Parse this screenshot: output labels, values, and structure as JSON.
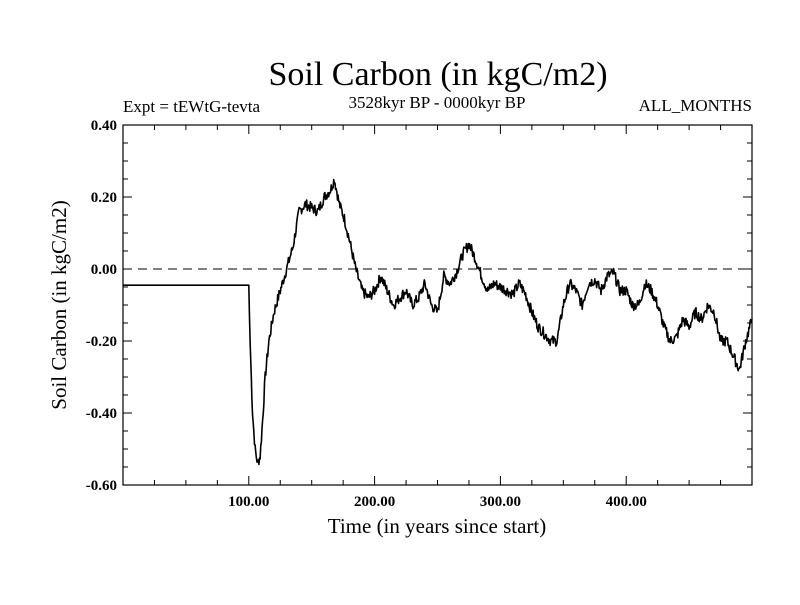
{
  "chart_data": {
    "type": "line",
    "title": "Soil Carbon (in kgC/m2)",
    "experiment_label": "Expt = tEWtG-tevta",
    "period_label": "3528kyr BP - 0000kyr BP",
    "months_label": "ALL_MONTHS",
    "xlabel": "Time (in years since start)",
    "ylabel": "Soil Carbon (in kgC/m2)",
    "xlim": [
      0,
      500
    ],
    "ylim": [
      -0.6,
      0.4
    ],
    "x_ticks": [
      {
        "value": 100,
        "label": "100.00"
      },
      {
        "value": 200,
        "label": "200.00"
      },
      {
        "value": 300,
        "label": "300.00"
      },
      {
        "value": 400,
        "label": "400.00"
      }
    ],
    "y_ticks": [
      {
        "value": 0.4,
        "label": "0.40"
      },
      {
        "value": 0.2,
        "label": "0.20"
      },
      {
        "value": 0.0,
        "label": "0.00"
      },
      {
        "value": -0.2,
        "label": "-0.20"
      },
      {
        "value": -0.4,
        "label": "-0.40"
      },
      {
        "value": -0.6,
        "label": "-0.60"
      }
    ],
    "reference_line": {
      "y": 0.0,
      "style": "dashed"
    },
    "grid": false,
    "series": [
      {
        "name": "soil carbon",
        "x": [
          0,
          100,
          101,
          103,
          105,
          107,
          109,
          111,
          113,
          116,
          120,
          125,
          130,
          135,
          140,
          145,
          150,
          155,
          160,
          165,
          168,
          172,
          176,
          180,
          185,
          190,
          195,
          200,
          205,
          210,
          215,
          220,
          225,
          230,
          235,
          240,
          245,
          250,
          255,
          260,
          265,
          270,
          275,
          280,
          285,
          290,
          295,
          300,
          305,
          310,
          315,
          320,
          325,
          330,
          335,
          340,
          345,
          350,
          355,
          360,
          365,
          370,
          375,
          380,
          385,
          390,
          395,
          400,
          405,
          410,
          415,
          420,
          425,
          430,
          435,
          440,
          445,
          450,
          455,
          460,
          465,
          470,
          475,
          480,
          485,
          490,
          495,
          500
        ],
        "y": [
          -0.045,
          -0.045,
          -0.2,
          -0.4,
          -0.5,
          -0.54,
          -0.52,
          -0.42,
          -0.3,
          -0.2,
          -0.12,
          -0.06,
          0.0,
          0.06,
          0.16,
          0.18,
          0.17,
          0.16,
          0.2,
          0.22,
          0.25,
          0.18,
          0.14,
          0.08,
          0.0,
          -0.06,
          -0.08,
          -0.06,
          -0.02,
          -0.06,
          -0.1,
          -0.08,
          -0.06,
          -0.1,
          -0.08,
          -0.04,
          -0.1,
          -0.12,
          -0.02,
          -0.04,
          -0.01,
          0.04,
          0.07,
          0.03,
          -0.02,
          -0.06,
          -0.04,
          -0.05,
          -0.06,
          -0.07,
          -0.04,
          -0.07,
          -0.12,
          -0.16,
          -0.18,
          -0.2,
          -0.2,
          -0.1,
          -0.04,
          -0.06,
          -0.1,
          -0.04,
          -0.03,
          -0.06,
          -0.02,
          -0.01,
          -0.06,
          -0.06,
          -0.1,
          -0.1,
          -0.04,
          -0.06,
          -0.1,
          -0.16,
          -0.2,
          -0.19,
          -0.14,
          -0.16,
          -0.12,
          -0.14,
          -0.1,
          -0.12,
          -0.2,
          -0.2,
          -0.24,
          -0.28,
          -0.2,
          -0.14
        ]
      }
    ]
  }
}
